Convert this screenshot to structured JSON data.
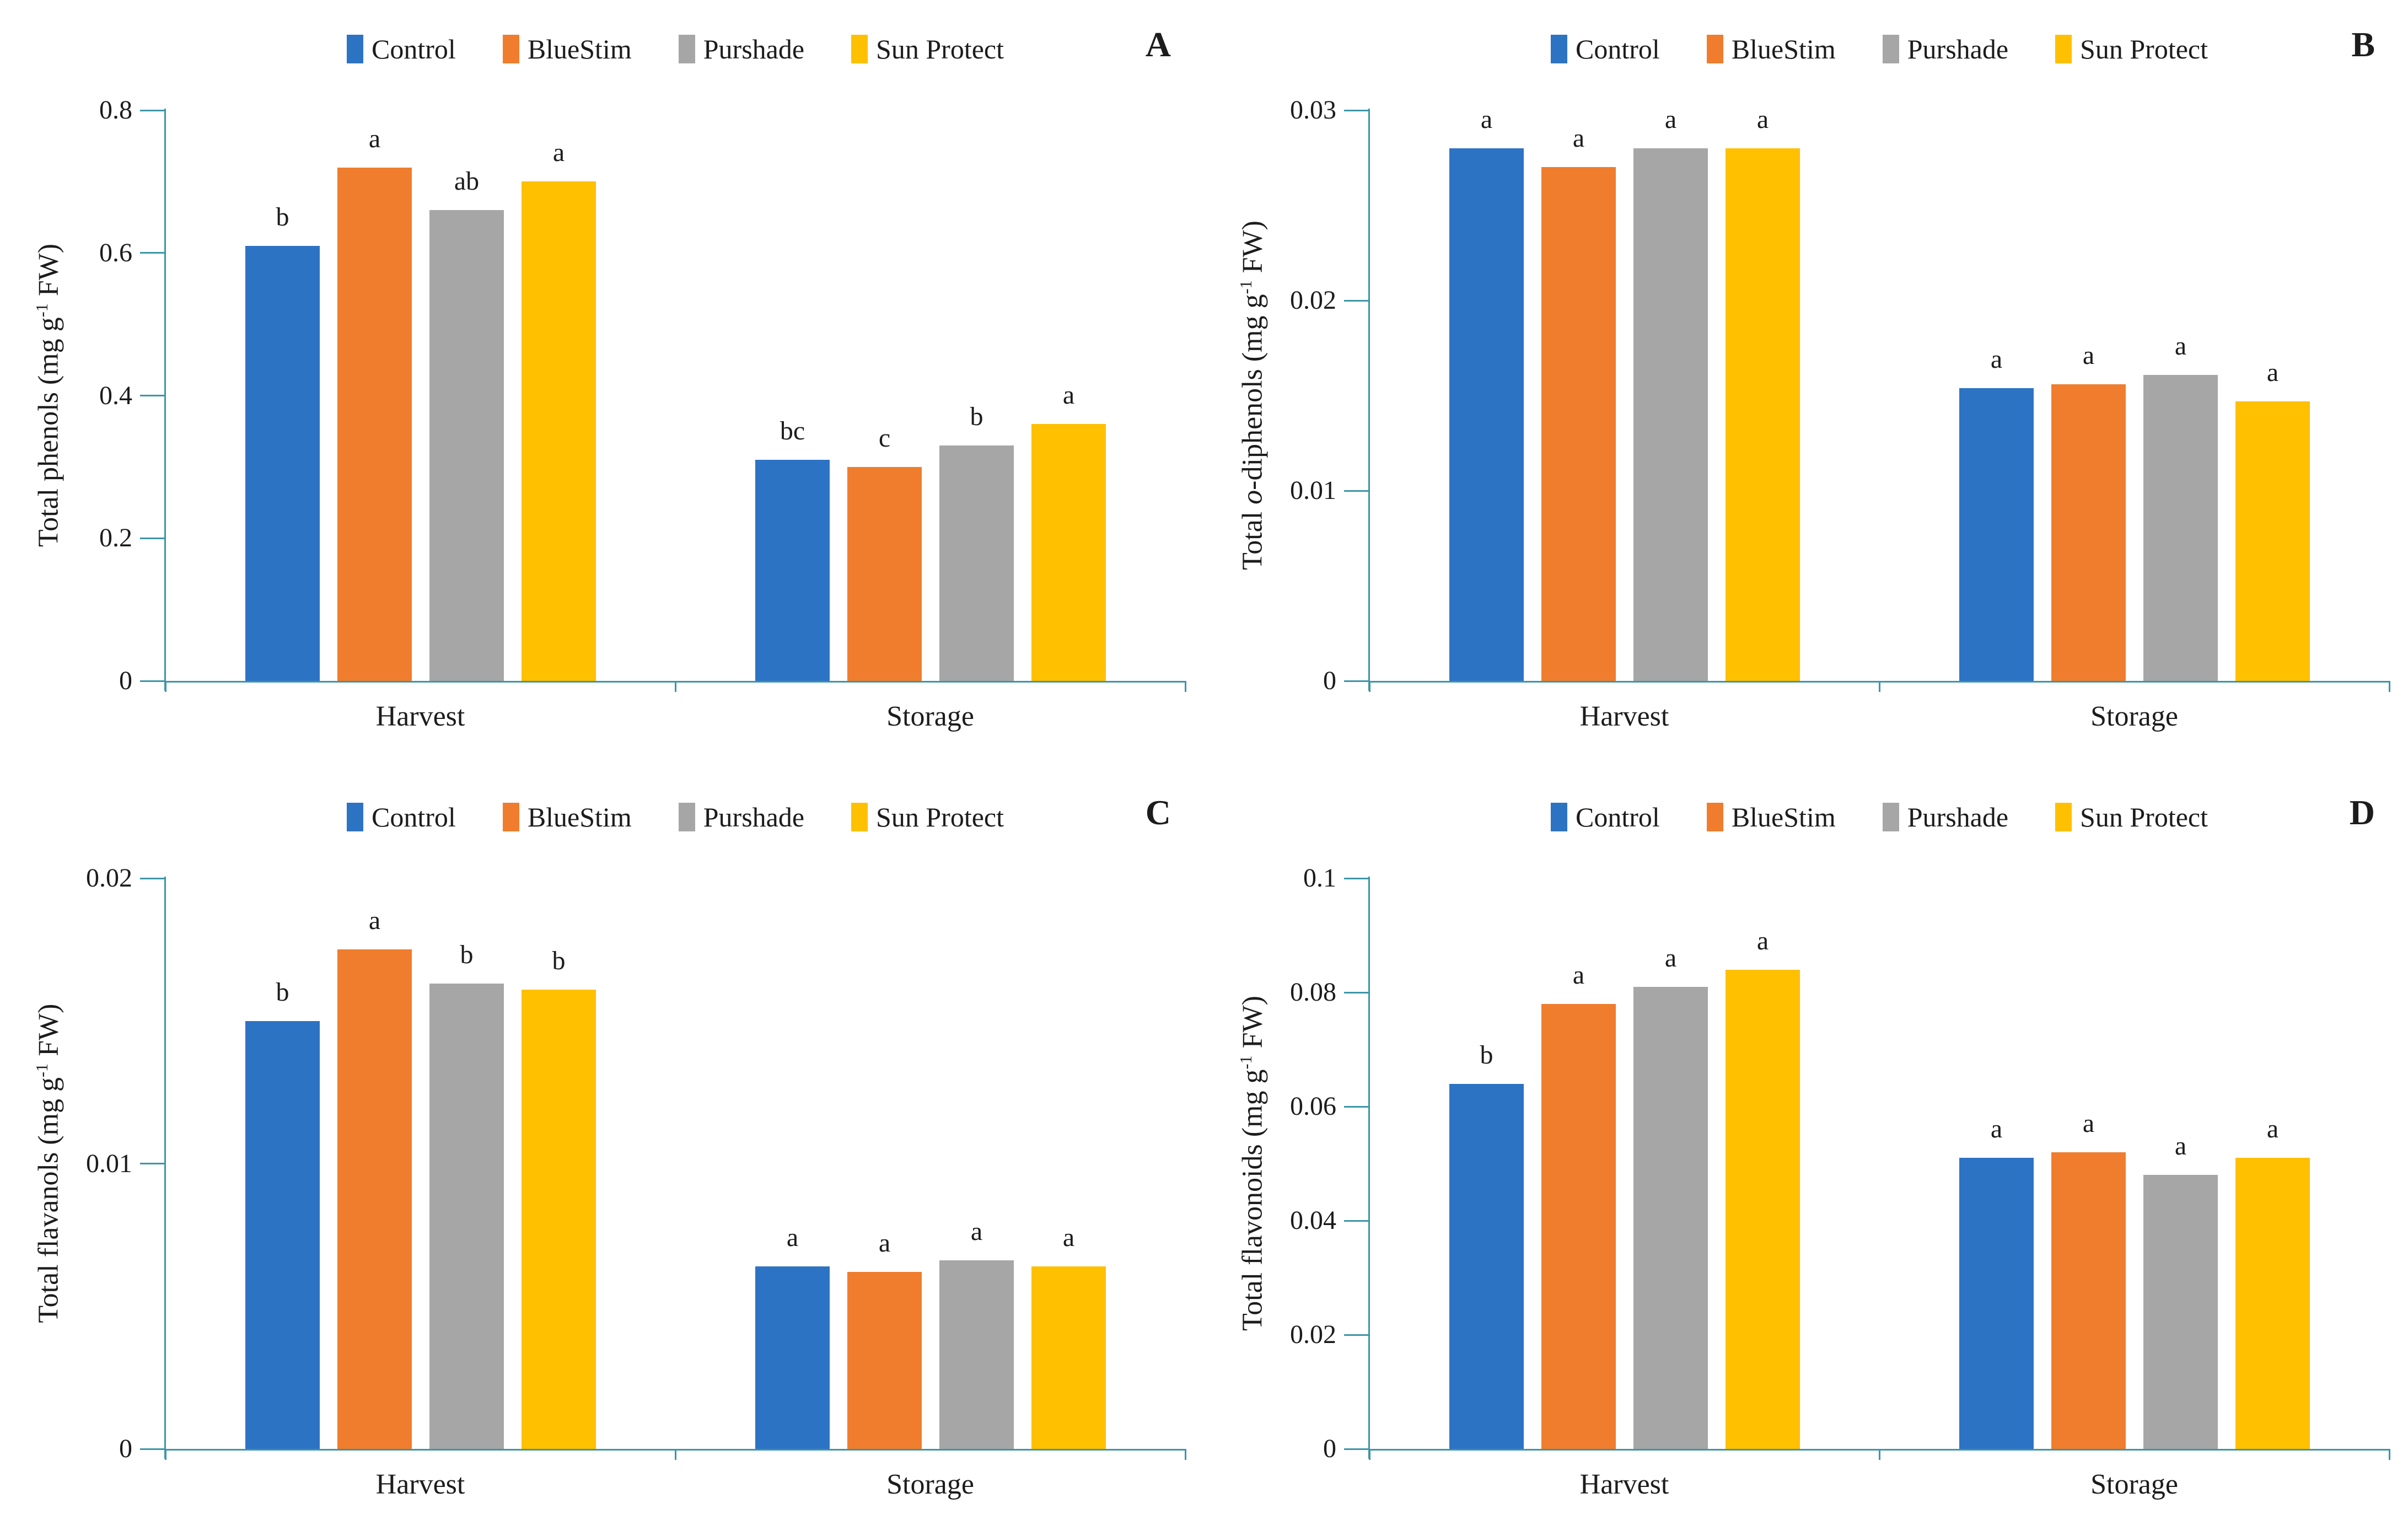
{
  "figure": {
    "background": "#ffffff",
    "legend_items": [
      {
        "label": "Control",
        "color_key": "control"
      },
      {
        "label": "BlueStim",
        "color_key": "bluestim"
      },
      {
        "label": "Purshade",
        "color_key": "purshade"
      },
      {
        "label": "Sun Protect",
        "color_key": "sunprotect"
      }
    ],
    "colors": {
      "control": "#2d73c4",
      "bluestim": "#ef7d2d",
      "purshade": "#a6a6a6",
      "sunprotect": "#ffc000",
      "axis": "#3d95a8",
      "text": "#1c1c1c"
    }
  },
  "chart_data": [
    {
      "type": "bar",
      "panel_label": "A",
      "ylabel": "Total phenols (mg g-1 FW)",
      "ylim": [
        0,
        0.8
      ],
      "yticks": [
        0,
        0.2,
        0.4,
        0.6,
        0.8
      ],
      "ytick_labels": [
        "0",
        "0.2",
        "0.4",
        "0.6",
        "0.8"
      ],
      "categories": [
        "Harvest",
        "Storage"
      ],
      "legend_position": "top",
      "grid": false,
      "series": [
        {
          "name": "Control",
          "values": [
            0.61,
            0.31
          ],
          "letters": [
            "b",
            "bc"
          ]
        },
        {
          "name": "BlueStim",
          "values": [
            0.72,
            0.3
          ],
          "letters": [
            "a",
            "c"
          ]
        },
        {
          "name": "Purshade",
          "values": [
            0.66,
            0.33
          ],
          "letters": [
            "ab",
            "b"
          ]
        },
        {
          "name": "Sun Protect",
          "values": [
            0.7,
            0.36
          ],
          "letters": [
            "a",
            "a"
          ]
        }
      ]
    },
    {
      "type": "bar",
      "panel_label": "B",
      "ylabel": "Total o-diphenols (mg g-1 FW)",
      "ylabel_italic": "o",
      "ylim": [
        0,
        0.03
      ],
      "yticks": [
        0,
        0.01,
        0.02,
        0.03
      ],
      "ytick_labels": [
        "0",
        "0.01",
        "0.02",
        "0.03"
      ],
      "categories": [
        "Harvest",
        "Storage"
      ],
      "legend_position": "top",
      "grid": false,
      "series": [
        {
          "name": "Control",
          "values": [
            0.028,
            0.0154
          ],
          "letters": [
            "a",
            "a"
          ]
        },
        {
          "name": "BlueStim",
          "values": [
            0.027,
            0.0156
          ],
          "letters": [
            "a",
            "a"
          ]
        },
        {
          "name": "Purshade",
          "values": [
            0.028,
            0.0161
          ],
          "letters": [
            "a",
            "a"
          ]
        },
        {
          "name": "Sun Protect",
          "values": [
            0.028,
            0.0147
          ],
          "letters": [
            "a",
            "a"
          ]
        }
      ]
    },
    {
      "type": "bar",
      "panel_label": "C",
      "ylabel": "Total flavanols (mg g-1 FW)",
      "ylim": [
        0,
        0.02
      ],
      "yticks": [
        0,
        0.01,
        0.02
      ],
      "ytick_labels": [
        "0",
        "0.01",
        "0.02"
      ],
      "categories": [
        "Harvest",
        "Storage"
      ],
      "legend_position": "top",
      "grid": false,
      "series": [
        {
          "name": "Control",
          "values": [
            0.015,
            0.0064
          ],
          "letters": [
            "b",
            "a"
          ]
        },
        {
          "name": "BlueStim",
          "values": [
            0.0175,
            0.0062
          ],
          "letters": [
            "a",
            "a"
          ]
        },
        {
          "name": "Purshade",
          "values": [
            0.0163,
            0.0066
          ],
          "letters": [
            "b",
            "a"
          ]
        },
        {
          "name": "Sun Protect",
          "values": [
            0.0161,
            0.0064
          ],
          "letters": [
            "b",
            "a"
          ]
        }
      ]
    },
    {
      "type": "bar",
      "panel_label": "D",
      "ylabel": "Total flavonoids (mg g-1 FW)",
      "ylim": [
        0,
        0.1
      ],
      "yticks": [
        0,
        0.02,
        0.04,
        0.06,
        0.08,
        0.1
      ],
      "ytick_labels": [
        "0",
        "0.02",
        "0.04",
        "0.06",
        "0.08",
        "0.1"
      ],
      "categories": [
        "Harvest",
        "Storage"
      ],
      "legend_position": "top",
      "grid": false,
      "series": [
        {
          "name": "Control",
          "values": [
            0.064,
            0.051
          ],
          "letters": [
            "b",
            "a"
          ]
        },
        {
          "name": "BlueStim",
          "values": [
            0.078,
            0.052
          ],
          "letters": [
            "a",
            "a"
          ]
        },
        {
          "name": "Purshade",
          "values": [
            0.081,
            0.048
          ],
          "letters": [
            "a",
            "a"
          ]
        },
        {
          "name": "Sun Protect",
          "values": [
            0.084,
            0.051
          ],
          "letters": [
            "a",
            "a"
          ]
        }
      ]
    }
  ]
}
